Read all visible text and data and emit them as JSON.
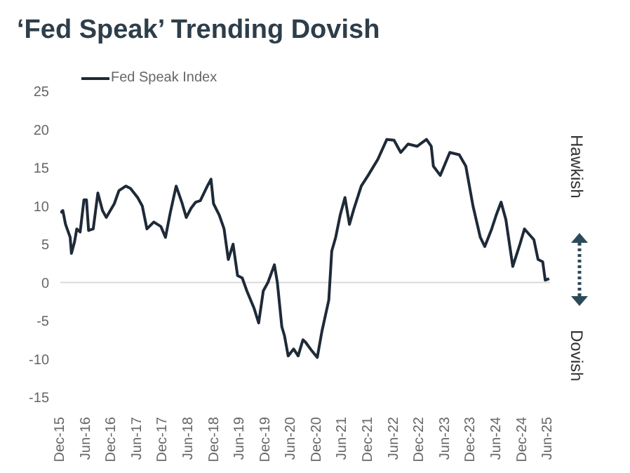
{
  "chart_data": {
    "type": "line",
    "title": "‘Fed Speak’ Trending Dovish",
    "legend": "top left",
    "grid": false,
    "annotations": [
      "Hawkish",
      "Dovish"
    ],
    "ylim": [
      -15,
      25
    ],
    "yticks": [
      -15,
      -10,
      -5,
      0,
      5,
      10,
      15,
      20,
      25
    ],
    "xlim": [
      "2015-12-01",
      "2025-06-15"
    ],
    "xticks": [
      {
        "value": "2015-12-01",
        "label": "Dec-15"
      },
      {
        "value": "2016-06-01",
        "label": "Jun-16"
      },
      {
        "value": "2016-12-01",
        "label": "Dec-16"
      },
      {
        "value": "2017-06-01",
        "label": "Jun-17"
      },
      {
        "value": "2017-12-01",
        "label": "Dec-17"
      },
      {
        "value": "2018-06-01",
        "label": "Jun-18"
      },
      {
        "value": "2018-12-01",
        "label": "Dec-18"
      },
      {
        "value": "2019-06-01",
        "label": "Jun-19"
      },
      {
        "value": "2019-12-01",
        "label": "Dec-19"
      },
      {
        "value": "2020-06-01",
        "label": "Jun-20"
      },
      {
        "value": "2020-12-01",
        "label": "Dec-20"
      },
      {
        "value": "2021-06-01",
        "label": "Jun-21"
      },
      {
        "value": "2021-12-01",
        "label": "Dec-21"
      },
      {
        "value": "2022-06-01",
        "label": "Jun-22"
      },
      {
        "value": "2022-12-01",
        "label": "Dec-22"
      },
      {
        "value": "2023-06-01",
        "label": "Jun-23"
      },
      {
        "value": "2023-12-01",
        "label": "Dec-23"
      },
      {
        "value": "2024-06-01",
        "label": "Jun-24"
      },
      {
        "value": "2024-12-01",
        "label": "Dec-24"
      },
      {
        "value": "2025-06-01",
        "label": "Jun-25"
      }
    ],
    "ref_lines": [
      {
        "axis": "y",
        "value": 0,
        "color": "#d9d9d9"
      }
    ],
    "x": [
      "2015-12-01",
      "2015-12-19",
      "2016-01-07",
      "2016-02-09",
      "2016-02-18",
      "2016-03-11",
      "2016-03-27",
      "2016-04-20",
      "2016-05-17",
      "2016-06-04",
      "2016-06-19",
      "2016-07-22",
      "2016-08-24",
      "2016-09-26",
      "2016-10-23",
      "2016-12-19",
      "2017-01-21",
      "2017-03-11",
      "2017-04-13",
      "2017-06-03",
      "2017-07-06",
      "2017-08-08",
      "2017-09-26",
      "2017-11-16",
      "2017-12-18",
      "2018-01-21",
      "2018-03-04",
      "2018-04-13",
      "2018-05-15",
      "2018-06-18",
      "2018-07-21",
      "2018-08-23",
      "2018-10-12",
      "2018-11-07",
      "2018-11-25",
      "2019-01-05",
      "2019-02-08",
      "2019-03-10",
      "2019-04-13",
      "2019-05-15",
      "2019-06-17",
      "2019-07-20",
      "2019-09-10",
      "2019-10-12",
      "2019-11-14",
      "2019-12-17",
      "2020-02-01",
      "2020-02-22",
      "2020-03-25",
      "2020-04-12",
      "2020-05-09",
      "2020-06-17",
      "2020-07-19",
      "2020-08-22",
      "2020-09-09",
      "2020-10-27",
      "2020-12-02",
      "2021-01-04",
      "2021-02-22",
      "2021-03-15",
      "2021-04-12",
      "2021-05-14",
      "2021-06-17",
      "2021-07-19",
      "2021-08-21",
      "2021-10-11",
      "2021-11-29",
      "2022-02-06",
      "2022-04-11",
      "2022-06-01",
      "2022-07-19",
      "2022-09-09",
      "2022-11-13",
      "2023-01-18",
      "2023-02-21",
      "2023-03-08",
      "2023-04-26",
      "2023-07-03",
      "2023-09-08",
      "2023-10-25",
      "2023-12-15",
      "2024-02-05",
      "2024-03-08",
      "2024-04-26",
      "2024-05-28",
      "2024-07-02",
      "2024-08-05",
      "2024-09-23",
      "2024-11-13",
      "2024-12-15",
      "2025-02-20",
      "2025-03-22",
      "2025-04-24",
      "2025-05-12",
      "2025-06-09"
    ],
    "series": [
      {
        "name": "Fed Speak Index",
        "color": "#1e2a38",
        "values": [
          9.1,
          9.4,
          7.6,
          5.9,
          3.8,
          5.3,
          7.0,
          6.6,
          10.8,
          10.8,
          6.8,
          7.0,
          11.7,
          9.4,
          8.5,
          10.3,
          12.0,
          12.6,
          12.3,
          11.1,
          10.0,
          7.0,
          7.9,
          7.3,
          5.9,
          9.1,
          12.6,
          10.5,
          8.5,
          9.7,
          10.5,
          10.7,
          12.6,
          13.5,
          10.3,
          8.8,
          7.0,
          3.0,
          5.0,
          0.9,
          0.6,
          -1.1,
          -3.4,
          -5.3,
          -1.1,
          0.0,
          2.3,
          0.0,
          -5.8,
          -6.9,
          -9.6,
          -8.7,
          -9.6,
          -7.5,
          -7.8,
          -9.0,
          -9.8,
          -6.4,
          -2.3,
          4.1,
          5.9,
          8.8,
          11.1,
          7.6,
          9.7,
          12.6,
          14.0,
          16.1,
          18.7,
          18.6,
          17.0,
          18.1,
          17.8,
          18.7,
          17.8,
          15.2,
          14.0,
          17.0,
          16.7,
          15.2,
          10.0,
          5.9,
          4.7,
          7.0,
          8.8,
          10.5,
          8.2,
          2.1,
          5.0,
          7.0,
          5.6,
          3.0,
          2.7,
          0.3,
          0.5
        ]
      }
    ]
  }
}
